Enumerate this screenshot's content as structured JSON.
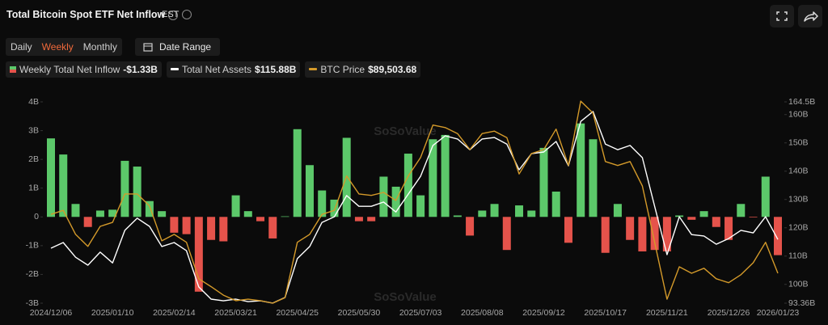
{
  "header": {
    "title": "Total Bitcoin Spot ETF Net Inflow",
    "timezone": "EST"
  },
  "controls": {
    "tabs": [
      "Daily",
      "Weekly",
      "Monthly"
    ],
    "active_tab": 1,
    "date_range": "Date Range"
  },
  "watermark": "SoSoValue",
  "chart_data": {
    "type": "combo",
    "categories": [
      "2024/12/06",
      null,
      null,
      null,
      null,
      "2025/01/10",
      null,
      null,
      null,
      null,
      "2025/02/14",
      null,
      null,
      null,
      null,
      "2025/03/21",
      null,
      null,
      null,
      null,
      "2025/04/25",
      null,
      null,
      null,
      null,
      "2025/05/30",
      null,
      null,
      null,
      null,
      "2025/07/03",
      null,
      null,
      null,
      null,
      "2025/08/08",
      null,
      null,
      null,
      null,
      "2025/09/12",
      null,
      null,
      null,
      null,
      "2025/10/17",
      null,
      null,
      null,
      null,
      "2025/11/21",
      null,
      null,
      null,
      null,
      "2025/12/26",
      null,
      null,
      null,
      "2026/01/23"
    ],
    "series": [
      {
        "name": "Weekly Total Net Inflow",
        "type": "bar",
        "color": "#5cc86a",
        "negative_color": "#e5534b",
        "summary": "-$1.33B",
        "values": [
          2.73,
          2.17,
          0.45,
          -0.35,
          0.22,
          0.25,
          1.95,
          1.75,
          0.55,
          0.2,
          -0.55,
          -0.6,
          -2.6,
          -0.8,
          -0.85,
          0.75,
          0.2,
          -0.15,
          -0.75,
          0.02,
          3.05,
          1.8,
          0.92,
          0.6,
          2.75,
          -0.15,
          -0.15,
          1.4,
          1.05,
          2.2,
          0.75,
          2.7,
          2.85,
          0.05,
          -0.65,
          0.22,
          0.45,
          -1.15,
          0.4,
          0.22,
          2.4,
          0.88,
          -0.9,
          3.25,
          2.7,
          -1.25,
          0.45,
          -0.8,
          -1.2,
          -1.15,
          -1.2,
          0.05,
          -0.1,
          0.2,
          -0.35,
          -0.8,
          0.45,
          -0.02,
          1.4,
          -1.33
        ]
      },
      {
        "name": "Total Net Assets",
        "type": "line",
        "axis": "y2",
        "color": "#ffffff",
        "summary": "$115.88B",
        "values": [
          112.8,
          114.8,
          109.6,
          106.8,
          111.4,
          107.6,
          119.1,
          123.4,
          120.5,
          113.4,
          114.8,
          111.9,
          99.1,
          94.8,
          94.2,
          94.8,
          93.9,
          94.2,
          93.4,
          95.4,
          109.1,
          113.4,
          121.9,
          123.9,
          131.4,
          127.6,
          127.6,
          129.1,
          125.6,
          131.9,
          138.2,
          149.1,
          152.5,
          151.4,
          147.6,
          151.4,
          151.9,
          149.6,
          140.5,
          146.2,
          146.8,
          150.5,
          141.9,
          157.6,
          161.1,
          149.6,
          147.6,
          149.1,
          144.8,
          127.6,
          110.5,
          123.9,
          117.6,
          117.1,
          114.2,
          116.2,
          119.1,
          118.2,
          123.9,
          115.88
        ]
      },
      {
        "name": "BTC Price",
        "type": "line",
        "axis": "y3",
        "color": "#d49a2a",
        "summary": "$89,503.68",
        "values": [
          101300,
          102100,
          97300,
          94900,
          98900,
          99700,
          105400,
          105400,
          103000,
          96000,
          97300,
          95700,
          88400,
          86800,
          85100,
          84000,
          84300,
          84000,
          83500,
          84600,
          95700,
          97300,
          101300,
          102100,
          109000,
          105400,
          105100,
          105700,
          104100,
          109000,
          112700,
          119200,
          118700,
          117500,
          114300,
          117500,
          118000,
          116700,
          109400,
          113500,
          114300,
          118400,
          111100,
          124000,
          121600,
          111900,
          111100,
          111900,
          107000,
          95700,
          84300,
          90800,
          89500,
          90500,
          88400,
          87600,
          89200,
          91600,
          95700,
          89503.68
        ]
      }
    ],
    "ylim": [
      -3,
      4
    ],
    "yticks": [
      {
        "value": -3,
        "label": "-3B"
      },
      {
        "value": -2,
        "label": "-2B"
      },
      {
        "value": -1,
        "label": "-1B"
      },
      0,
      {
        "value": 1,
        "label": "1B"
      },
      {
        "value": 2,
        "label": "2B"
      },
      {
        "value": 3,
        "label": "3B"
      },
      {
        "value": 4,
        "label": "4B"
      }
    ],
    "y2lim": [
      93.36,
      164.5
    ],
    "y2ticks": [
      {
        "value": 93.36,
        "label": "93.36B"
      },
      {
        "value": 100,
        "label": "100B"
      },
      {
        "value": 110,
        "label": "110B"
      },
      {
        "value": 120,
        "label": "120B"
      },
      {
        "value": 130,
        "label": "130B"
      },
      {
        "value": 140,
        "label": "140B"
      },
      {
        "value": 150,
        "label": "150B"
      },
      {
        "value": 160,
        "label": "160B"
      },
      {
        "value": 164.5,
        "label": "164.5B"
      }
    ],
    "y3lim": [
      83500,
      123860
    ],
    "grid": false
  }
}
